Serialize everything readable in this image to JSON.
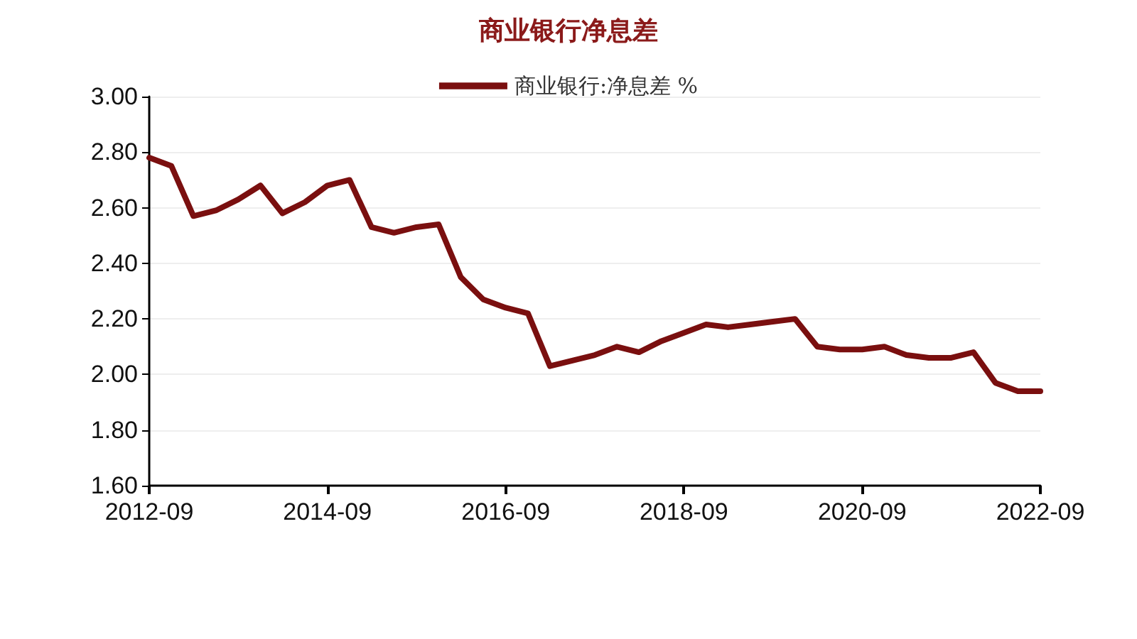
{
  "chart_data": {
    "type": "line",
    "title": "商业银行净息差",
    "x": [
      "2012-09",
      "2012-12",
      "2013-03",
      "2013-06",
      "2013-09",
      "2013-12",
      "2014-03",
      "2014-06",
      "2014-09",
      "2014-12",
      "2015-03",
      "2015-06",
      "2015-09",
      "2015-12",
      "2016-03",
      "2016-06",
      "2016-09",
      "2016-12",
      "2017-03",
      "2017-06",
      "2017-09",
      "2017-12",
      "2018-03",
      "2018-06",
      "2018-09",
      "2018-12",
      "2019-03",
      "2019-06",
      "2019-09",
      "2019-12",
      "2020-03",
      "2020-06",
      "2020-09",
      "2020-12",
      "2021-03",
      "2021-06",
      "2021-09",
      "2021-12",
      "2022-03",
      "2022-06",
      "2022-09"
    ],
    "series": [
      {
        "name": "商业银行:净息差 %",
        "color": "#7a0f0f",
        "values": [
          2.78,
          2.75,
          2.57,
          2.59,
          2.63,
          2.68,
          2.58,
          2.62,
          2.68,
          2.7,
          2.53,
          2.51,
          2.53,
          2.54,
          2.35,
          2.27,
          2.24,
          2.22,
          2.03,
          2.05,
          2.07,
          2.1,
          2.08,
          2.12,
          2.15,
          2.18,
          2.17,
          2.18,
          2.19,
          2.2,
          2.1,
          2.09,
          2.09,
          2.1,
          2.07,
          2.06,
          2.06,
          2.08,
          1.97,
          1.94,
          1.94
        ]
      }
    ],
    "xlim": [
      "2012-09",
      "2022-09"
    ],
    "xticks": [
      "2012-09",
      "2014-09",
      "2016-09",
      "2018-09",
      "2020-09",
      "2022-09"
    ],
    "ylim": [
      1.6,
      3.0
    ],
    "yticks": [
      {
        "value": 1.6,
        "label": "1.60"
      },
      {
        "value": 1.8,
        "label": "1.80"
      },
      {
        "value": 2.0,
        "label": "2.00"
      },
      {
        "value": 2.2,
        "label": "2.20"
      },
      {
        "value": 2.4,
        "label": "2.40"
      },
      {
        "value": 2.6,
        "label": "2.60"
      },
      {
        "value": 2.8,
        "label": "2.80"
      },
      {
        "value": 3.0,
        "label": "3.00"
      }
    ],
    "grid": "y",
    "legend": "top",
    "marker": "none",
    "line_style": "solid"
  }
}
